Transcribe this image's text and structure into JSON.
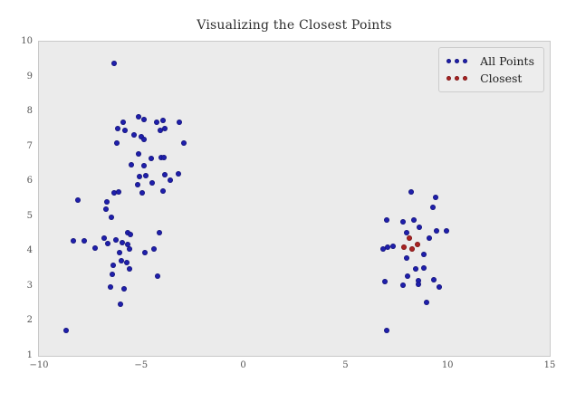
{
  "figure": {
    "title": "Visualizing the Closest Points",
    "background_color": "#ffffff",
    "plot_background_color": "#ebebeb",
    "plot_border_color": "#c9c9c9",
    "title_color": "#2e2e2e",
    "tick_label_color": "#555555"
  },
  "legend": {
    "position": "upper right",
    "background_color": "#ededed",
    "border_color": "#cccccc",
    "entries": [
      {
        "label": "All Points",
        "marker": "dot",
        "marker_count": 3,
        "color": "#1f1fad"
      },
      {
        "label": "Closest",
        "marker": "dot",
        "marker_count": 3,
        "color": "#ab2222"
      }
    ]
  },
  "chart_data": {
    "type": "scatter",
    "title": "Visualizing the Closest Points",
    "xlabel": "",
    "ylabel": "",
    "xlim": [
      -10,
      15
    ],
    "ylim": [
      1,
      10
    ],
    "x_ticks": [
      -10,
      -5,
      0,
      5,
      10,
      15
    ],
    "x_tick_labels": [
      "−10",
      "−5",
      "0",
      "5",
      "10",
      "15"
    ],
    "y_ticks": [
      1,
      2,
      3,
      4,
      5,
      6,
      7,
      8,
      9,
      10
    ],
    "y_tick_labels": [
      "1",
      "2",
      "3",
      "4",
      "5",
      "6",
      "7",
      "8",
      "9",
      "10"
    ],
    "grid": false,
    "legend_position": "upper right",
    "series": [
      {
        "name": "All Points",
        "color": "#1f1fad",
        "points": [
          [
            -6.33,
            9.38
          ],
          [
            -5.12,
            7.86
          ],
          [
            -4.86,
            7.76
          ],
          [
            -5.89,
            7.7
          ],
          [
            -4.24,
            7.7
          ],
          [
            -3.93,
            7.75
          ],
          [
            -3.12,
            7.68
          ],
          [
            -6.14,
            7.52
          ],
          [
            -5.81,
            7.46
          ],
          [
            -4.08,
            7.46
          ],
          [
            -3.84,
            7.52
          ],
          [
            -5.34,
            7.32
          ],
          [
            -4.99,
            7.27
          ],
          [
            -4.86,
            7.21
          ],
          [
            -6.21,
            7.09
          ],
          [
            -2.91,
            7.09
          ],
          [
            -5.12,
            6.78
          ],
          [
            -4.49,
            6.65
          ],
          [
            -4.02,
            6.69
          ],
          [
            -3.87,
            6.69
          ],
          [
            -5.48,
            6.47
          ],
          [
            -4.86,
            6.44
          ],
          [
            -5.08,
            6.13
          ],
          [
            -4.75,
            6.16
          ],
          [
            -3.83,
            6.18
          ],
          [
            -3.58,
            6.03
          ],
          [
            -3.19,
            6.22
          ],
          [
            -5.15,
            5.9
          ],
          [
            -4.45,
            5.96
          ],
          [
            -4.96,
            5.66
          ],
          [
            -3.93,
            5.73
          ],
          [
            -6.33,
            5.66
          ],
          [
            -6.08,
            5.69
          ],
          [
            -8.1,
            5.46
          ],
          [
            -6.67,
            5.42
          ],
          [
            -6.73,
            5.19
          ],
          [
            -6.45,
            4.96
          ],
          [
            -5.67,
            4.54
          ],
          [
            -5.52,
            4.48
          ],
          [
            -4.12,
            4.53
          ],
          [
            -8.32,
            4.3
          ],
          [
            -7.78,
            4.3
          ],
          [
            -7.25,
            4.09
          ],
          [
            -6.82,
            4.37
          ],
          [
            -6.63,
            4.22
          ],
          [
            -6.24,
            4.32
          ],
          [
            -5.92,
            4.25
          ],
          [
            -5.64,
            4.18
          ],
          [
            -5.55,
            4.05
          ],
          [
            -6.04,
            3.95
          ],
          [
            -4.82,
            3.96
          ],
          [
            -4.37,
            4.05
          ],
          [
            -5.96,
            3.72
          ],
          [
            -5.72,
            3.67
          ],
          [
            -6.36,
            3.6
          ],
          [
            -5.57,
            3.49
          ],
          [
            -6.39,
            3.34
          ],
          [
            -4.2,
            3.28
          ],
          [
            -6.5,
            2.98
          ],
          [
            -5.84,
            2.91
          ],
          [
            -6.0,
            2.48
          ],
          [
            -8.66,
            1.73
          ],
          [
            8.23,
            5.69
          ],
          [
            9.4,
            5.53
          ],
          [
            9.29,
            5.25
          ],
          [
            7.04,
            4.89
          ],
          [
            7.82,
            4.84
          ],
          [
            8.36,
            4.89
          ],
          [
            8.63,
            4.69
          ],
          [
            8.01,
            4.54
          ],
          [
            9.44,
            4.58
          ],
          [
            9.93,
            4.58
          ],
          [
            9.11,
            4.37
          ],
          [
            7.08,
            4.11
          ],
          [
            7.33,
            4.15
          ],
          [
            6.83,
            4.07
          ],
          [
            8.01,
            3.81
          ],
          [
            8.83,
            3.9
          ],
          [
            8.85,
            3.51
          ],
          [
            8.43,
            3.48
          ],
          [
            8.04,
            3.27
          ],
          [
            6.93,
            3.12
          ],
          [
            7.82,
            3.03
          ],
          [
            8.56,
            3.15
          ],
          [
            8.56,
            3.06
          ],
          [
            9.32,
            3.17
          ],
          [
            9.58,
            2.97
          ],
          [
            8.99,
            2.52
          ],
          [
            7.01,
            1.72
          ]
        ]
      },
      {
        "name": "Closest",
        "color": "#ab2222",
        "points": [
          [
            8.11,
            4.37
          ],
          [
            7.86,
            4.11
          ],
          [
            8.26,
            4.07
          ],
          [
            8.51,
            4.18
          ]
        ]
      }
    ]
  }
}
